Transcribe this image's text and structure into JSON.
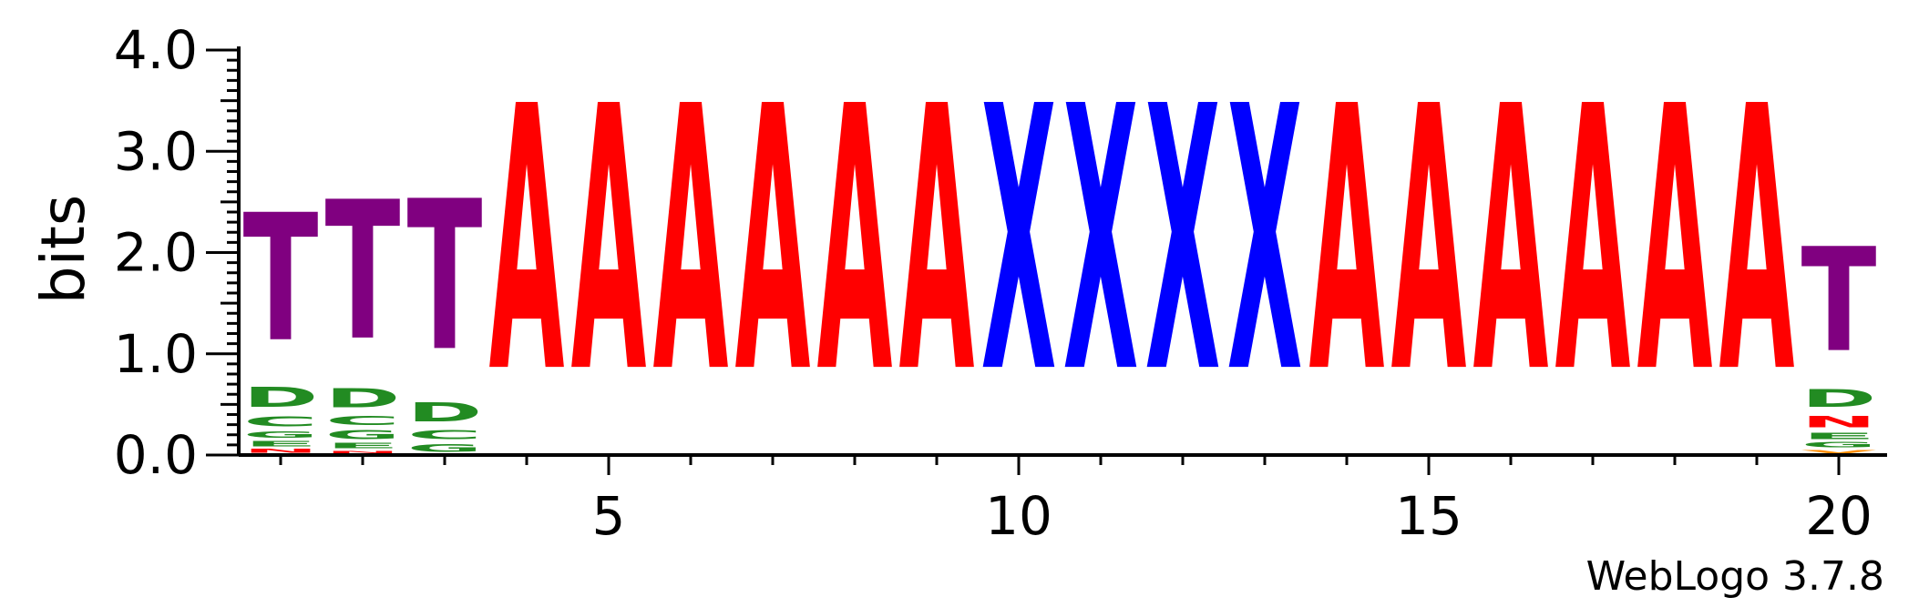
{
  "chart_data": {
    "type": "sequence-logo",
    "ylabel": "bits",
    "ylim": [
      0,
      4.0
    ],
    "y_ticks": [
      "0.0",
      "1.0",
      "2.0",
      "3.0",
      "4.0"
    ],
    "x_ticks": [
      {
        "position": 5,
        "label": "5"
      },
      {
        "position": 10,
        "label": "10"
      },
      {
        "position": 15,
        "label": "15"
      },
      {
        "position": 20,
        "label": "20"
      }
    ],
    "positions": [
      1,
      2,
      3,
      4,
      5,
      6,
      7,
      8,
      9,
      10,
      11,
      12,
      13,
      14,
      15,
      16,
      17,
      18,
      19,
      20
    ],
    "footer": "WebLogo 3.7.8",
    "colors": {
      "T": "#800080",
      "D": "#228b22",
      "A": "#ff0000",
      "X": "#0000ff",
      "N": "#ff0000",
      "G": "#228b22",
      "E": "#228b22",
      "C": "#228b22",
      "V": "#ff8c00"
    },
    "stacks": [
      {
        "position": 1,
        "letters": [
          [
            "N",
            0.06
          ],
          [
            "E",
            0.08
          ],
          [
            "G",
            0.1
          ],
          [
            "C",
            0.16
          ],
          [
            "D",
            0.32
          ],
          [
            "T",
            2.02
          ]
        ]
      },
      {
        "position": 2,
        "letters": [
          [
            "N",
            0.04
          ],
          [
            "E",
            0.08
          ],
          [
            "G",
            0.14
          ],
          [
            "C",
            0.14
          ],
          [
            "D",
            0.3
          ],
          [
            "T",
            2.2
          ]
        ]
      },
      {
        "position": 3,
        "letters": [
          [
            "G",
            0.12
          ],
          [
            "C",
            0.14
          ],
          [
            "D",
            0.3
          ],
          [
            "T",
            2.38
          ]
        ]
      },
      {
        "position": 4,
        "letters": [
          [
            "A",
            4.2
          ]
        ]
      },
      {
        "position": 5,
        "letters": [
          [
            "A",
            4.2
          ]
        ]
      },
      {
        "position": 6,
        "letters": [
          [
            "A",
            4.2
          ]
        ]
      },
      {
        "position": 7,
        "letters": [
          [
            "A",
            4.2
          ]
        ]
      },
      {
        "position": 8,
        "letters": [
          [
            "A",
            4.2
          ]
        ]
      },
      {
        "position": 9,
        "letters": [
          [
            "A",
            4.2
          ]
        ]
      },
      {
        "position": 10,
        "letters": [
          [
            "X",
            4.2
          ]
        ]
      },
      {
        "position": 11,
        "letters": [
          [
            "X",
            4.2
          ]
        ]
      },
      {
        "position": 12,
        "letters": [
          [
            "X",
            4.2
          ]
        ]
      },
      {
        "position": 13,
        "letters": [
          [
            "X",
            4.2
          ]
        ]
      },
      {
        "position": 14,
        "letters": [
          [
            "A",
            4.2
          ]
        ]
      },
      {
        "position": 15,
        "letters": [
          [
            "A",
            4.2
          ]
        ]
      },
      {
        "position": 16,
        "letters": [
          [
            "A",
            4.2
          ]
        ]
      },
      {
        "position": 17,
        "letters": [
          [
            "A",
            4.2
          ]
        ]
      },
      {
        "position": 18,
        "letters": [
          [
            "A",
            4.2
          ]
        ]
      },
      {
        "position": 19,
        "letters": [
          [
            "A",
            4.2
          ]
        ]
      },
      {
        "position": 20,
        "letters": [
          [
            "V",
            0.05
          ],
          [
            "G",
            0.08
          ],
          [
            "E",
            0.1
          ],
          [
            "N",
            0.18
          ],
          [
            "D",
            0.28
          ],
          [
            "T",
            1.65
          ]
        ]
      }
    ]
  }
}
